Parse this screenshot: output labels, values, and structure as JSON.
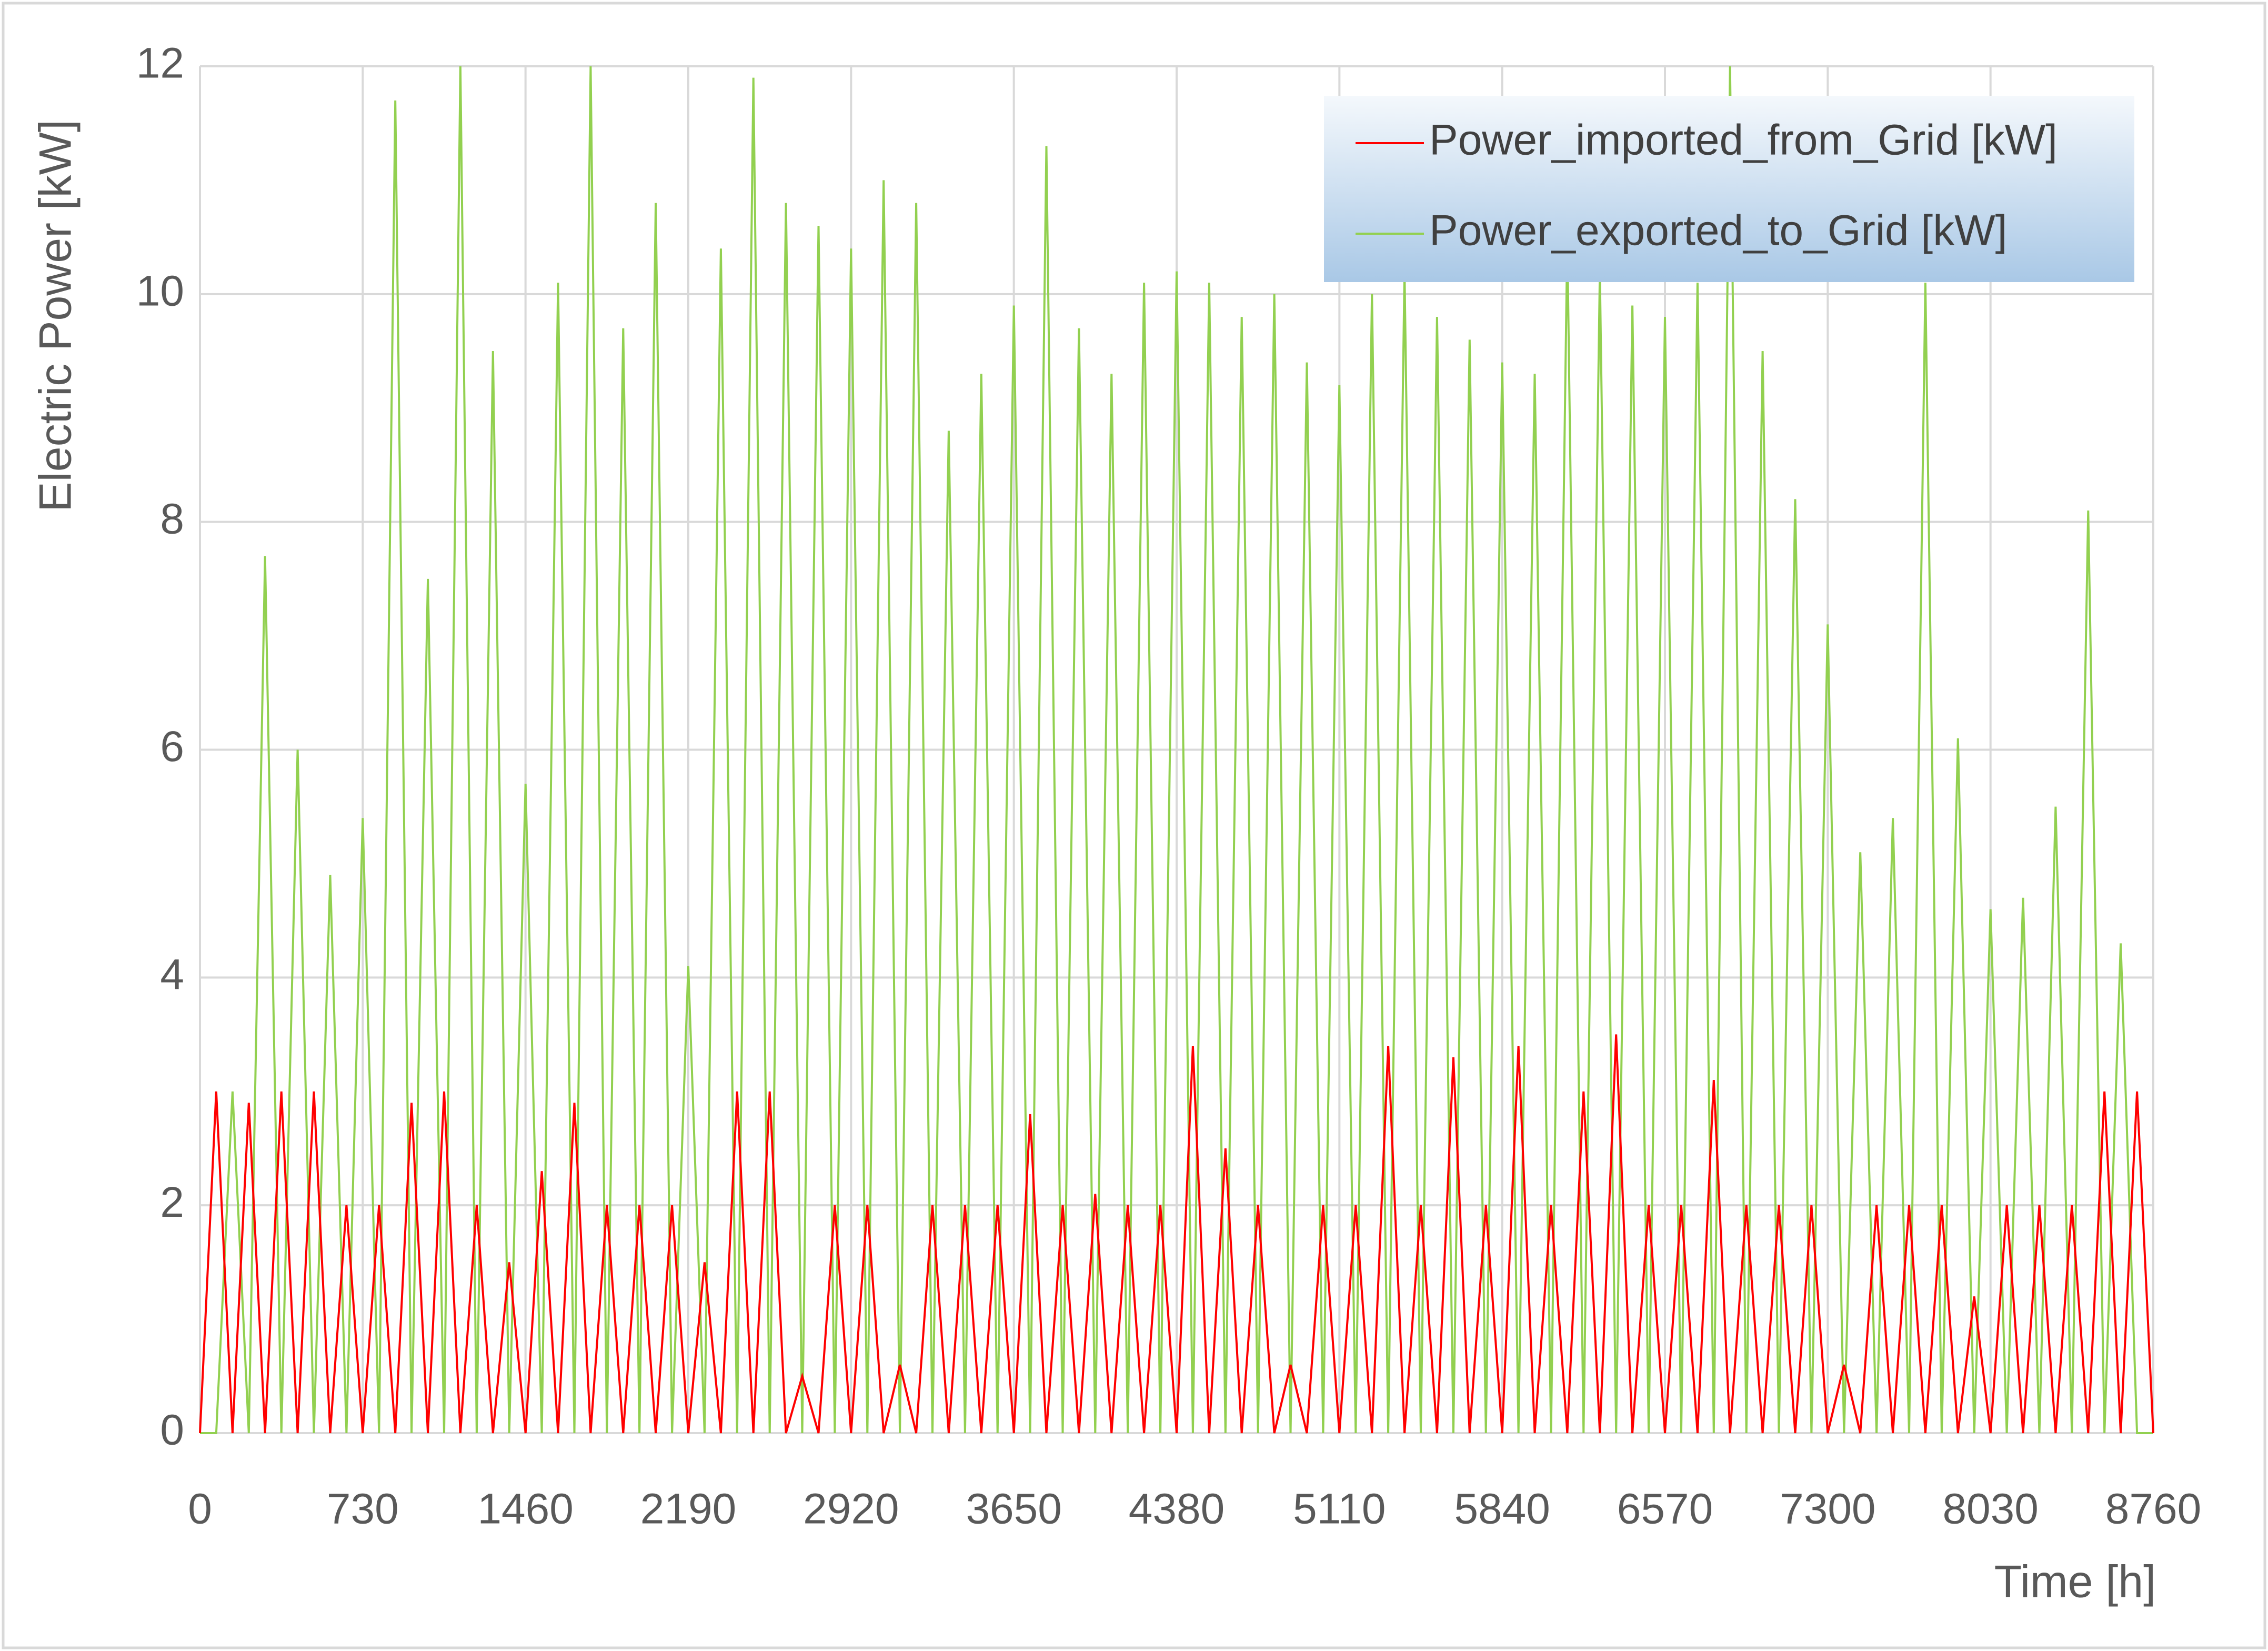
{
  "chart_data": {
    "type": "line",
    "ylabel": "Electric Power [kW]",
    "xlabel": "Time [h]",
    "xlim": [
      0,
      8760
    ],
    "ylim": [
      0,
      12
    ],
    "xticks": [
      0,
      730,
      1460,
      2190,
      2920,
      3650,
      4380,
      5110,
      5840,
      6570,
      7300,
      8030,
      8760
    ],
    "yticks": [
      0,
      2,
      4,
      6,
      8,
      10,
      12
    ],
    "grid": true,
    "legend": "upper right",
    "x": [
      0,
      73,
      146,
      219,
      292,
      365,
      438,
      511,
      584,
      657,
      730,
      803,
      876,
      949,
      1022,
      1095,
      1168,
      1241,
      1314,
      1387,
      1460,
      1533,
      1606,
      1679,
      1752,
      1825,
      1898,
      1971,
      2044,
      2117,
      2190,
      2263,
      2336,
      2409,
      2482,
      2555,
      2628,
      2701,
      2774,
      2847,
      2920,
      2993,
      3066,
      3139,
      3212,
      3285,
      3358,
      3431,
      3504,
      3577,
      3650,
      3723,
      3796,
      3869,
      3942,
      4015,
      4088,
      4161,
      4234,
      4307,
      4380,
      4453,
      4526,
      4599,
      4672,
      4745,
      4818,
      4891,
      4964,
      5037,
      5110,
      5183,
      5256,
      5329,
      5402,
      5475,
      5548,
      5621,
      5694,
      5767,
      5840,
      5913,
      5986,
      6059,
      6132,
      6205,
      6278,
      6351,
      6424,
      6497,
      6570,
      6643,
      6716,
      6789,
      6862,
      6935,
      7008,
      7081,
      7154,
      7227,
      7300,
      7373,
      7446,
      7519,
      7592,
      7665,
      7738,
      7811,
      7884,
      7957,
      8030,
      8103,
      8176,
      8249,
      8322,
      8395,
      8468,
      8541,
      8614,
      8687,
      8760
    ],
    "series": [
      {
        "name": "Power_imported_from_Grid [kW]",
        "color": "#ff0000",
        "values": [
          0,
          3,
          0,
          2.9,
          0,
          3,
          0,
          3,
          0,
          2,
          0,
          2,
          0,
          2.9,
          0,
          3,
          0,
          2,
          0,
          1.5,
          0,
          2.3,
          0,
          2.9,
          0,
          2,
          0,
          2,
          0,
          2,
          0,
          1.5,
          0,
          3,
          0,
          3,
          0,
          0.5,
          0,
          2,
          0,
          2,
          0,
          0.6,
          0,
          2,
          0,
          2,
          0,
          2,
          0,
          2.8,
          0,
          2,
          0,
          2.1,
          0,
          2,
          0,
          2,
          0,
          3.4,
          0,
          2.5,
          0,
          2,
          0,
          0.6,
          0,
          2,
          0,
          2,
          0,
          3.4,
          0,
          2,
          0,
          3.3,
          0,
          2,
          0,
          3.4,
          0,
          2,
          0,
          3,
          0,
          3.5,
          0,
          2,
          0,
          2,
          0,
          3.1,
          0,
          2,
          0,
          2,
          0,
          2,
          0,
          0.6,
          0,
          2,
          0,
          2,
          0,
          2,
          0,
          1.2,
          0,
          2,
          0,
          2,
          0,
          2,
          0,
          3,
          0,
          3,
          0
        ]
      },
      {
        "name": "Power_exported_to_Grid [kW]",
        "color": "#92d050",
        "values": [
          0,
          0,
          3,
          0,
          7.7,
          0,
          6,
          0,
          4.9,
          0,
          5.4,
          0,
          11.7,
          0,
          7.5,
          0,
          12,
          0,
          9.5,
          0,
          5.7,
          0,
          10.1,
          0,
          12,
          0,
          9.7,
          0,
          10.8,
          0,
          4.1,
          0,
          10.4,
          0,
          11.9,
          0,
          10.8,
          0,
          10.6,
          0,
          10.4,
          0,
          11,
          0,
          10.8,
          0,
          8.8,
          0,
          9.3,
          0,
          9.9,
          0,
          11.3,
          0,
          9.7,
          0,
          9.3,
          0,
          10.1,
          0,
          10.2,
          0,
          10.1,
          0,
          9.8,
          0,
          10,
          0,
          9.4,
          0,
          9.2,
          0,
          10,
          0,
          10.2,
          0,
          9.8,
          0,
          9.6,
          0,
          9.4,
          0,
          9.3,
          0,
          10.5,
          0,
          10.2,
          0,
          9.9,
          0,
          9.8,
          0,
          10.1,
          0,
          12,
          0,
          9.5,
          0,
          8.2,
          0,
          7.1,
          0,
          5.1,
          0,
          5.4,
          0,
          10.1,
          0,
          6.1,
          0,
          4.6,
          0,
          4.7,
          0,
          5.5,
          0,
          8.1,
          0,
          4.3,
          0,
          0
        ]
      }
    ]
  }
}
